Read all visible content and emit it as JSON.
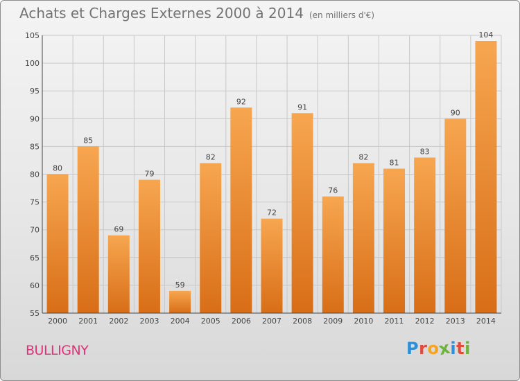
{
  "title": "Achats et Charges Externes 2000 à 2014",
  "subtitle": "(en milliers d'€)",
  "commune": "BULLIGNY",
  "logo": {
    "text": "Proxiti",
    "letters": [
      "P",
      "r",
      "o",
      "x",
      "i",
      "t",
      "i"
    ],
    "colors": [
      "#2e8ed6",
      "#e24a3a",
      "#f6a321",
      "#6bb33a",
      "#2e8ed6",
      "#e24a3a",
      "#6bb33a"
    ]
  },
  "colors": {
    "bar_top": "#f7a650",
    "bar_bottom": "#d86e17",
    "grid": "#c8c8c8",
    "axis": "#444444",
    "title": "#737373",
    "commune": "#e0317a"
  },
  "chart_data": {
    "type": "bar",
    "title": "Achats et Charges Externes 2000 à 2014",
    "subtitle": "(en milliers d'€)",
    "categories": [
      "2000",
      "2001",
      "2002",
      "2003",
      "2004",
      "2005",
      "2006",
      "2007",
      "2008",
      "2009",
      "2010",
      "2011",
      "2012",
      "2013",
      "2014"
    ],
    "values": [
      80,
      85,
      69,
      79,
      59,
      82,
      92,
      72,
      91,
      76,
      82,
      81,
      83,
      90,
      104
    ],
    "ylim": [
      55,
      105
    ],
    "yticks": [
      55,
      60,
      65,
      70,
      75,
      80,
      85,
      90,
      95,
      100,
      105
    ],
    "grid": true,
    "data_labels": true
  }
}
